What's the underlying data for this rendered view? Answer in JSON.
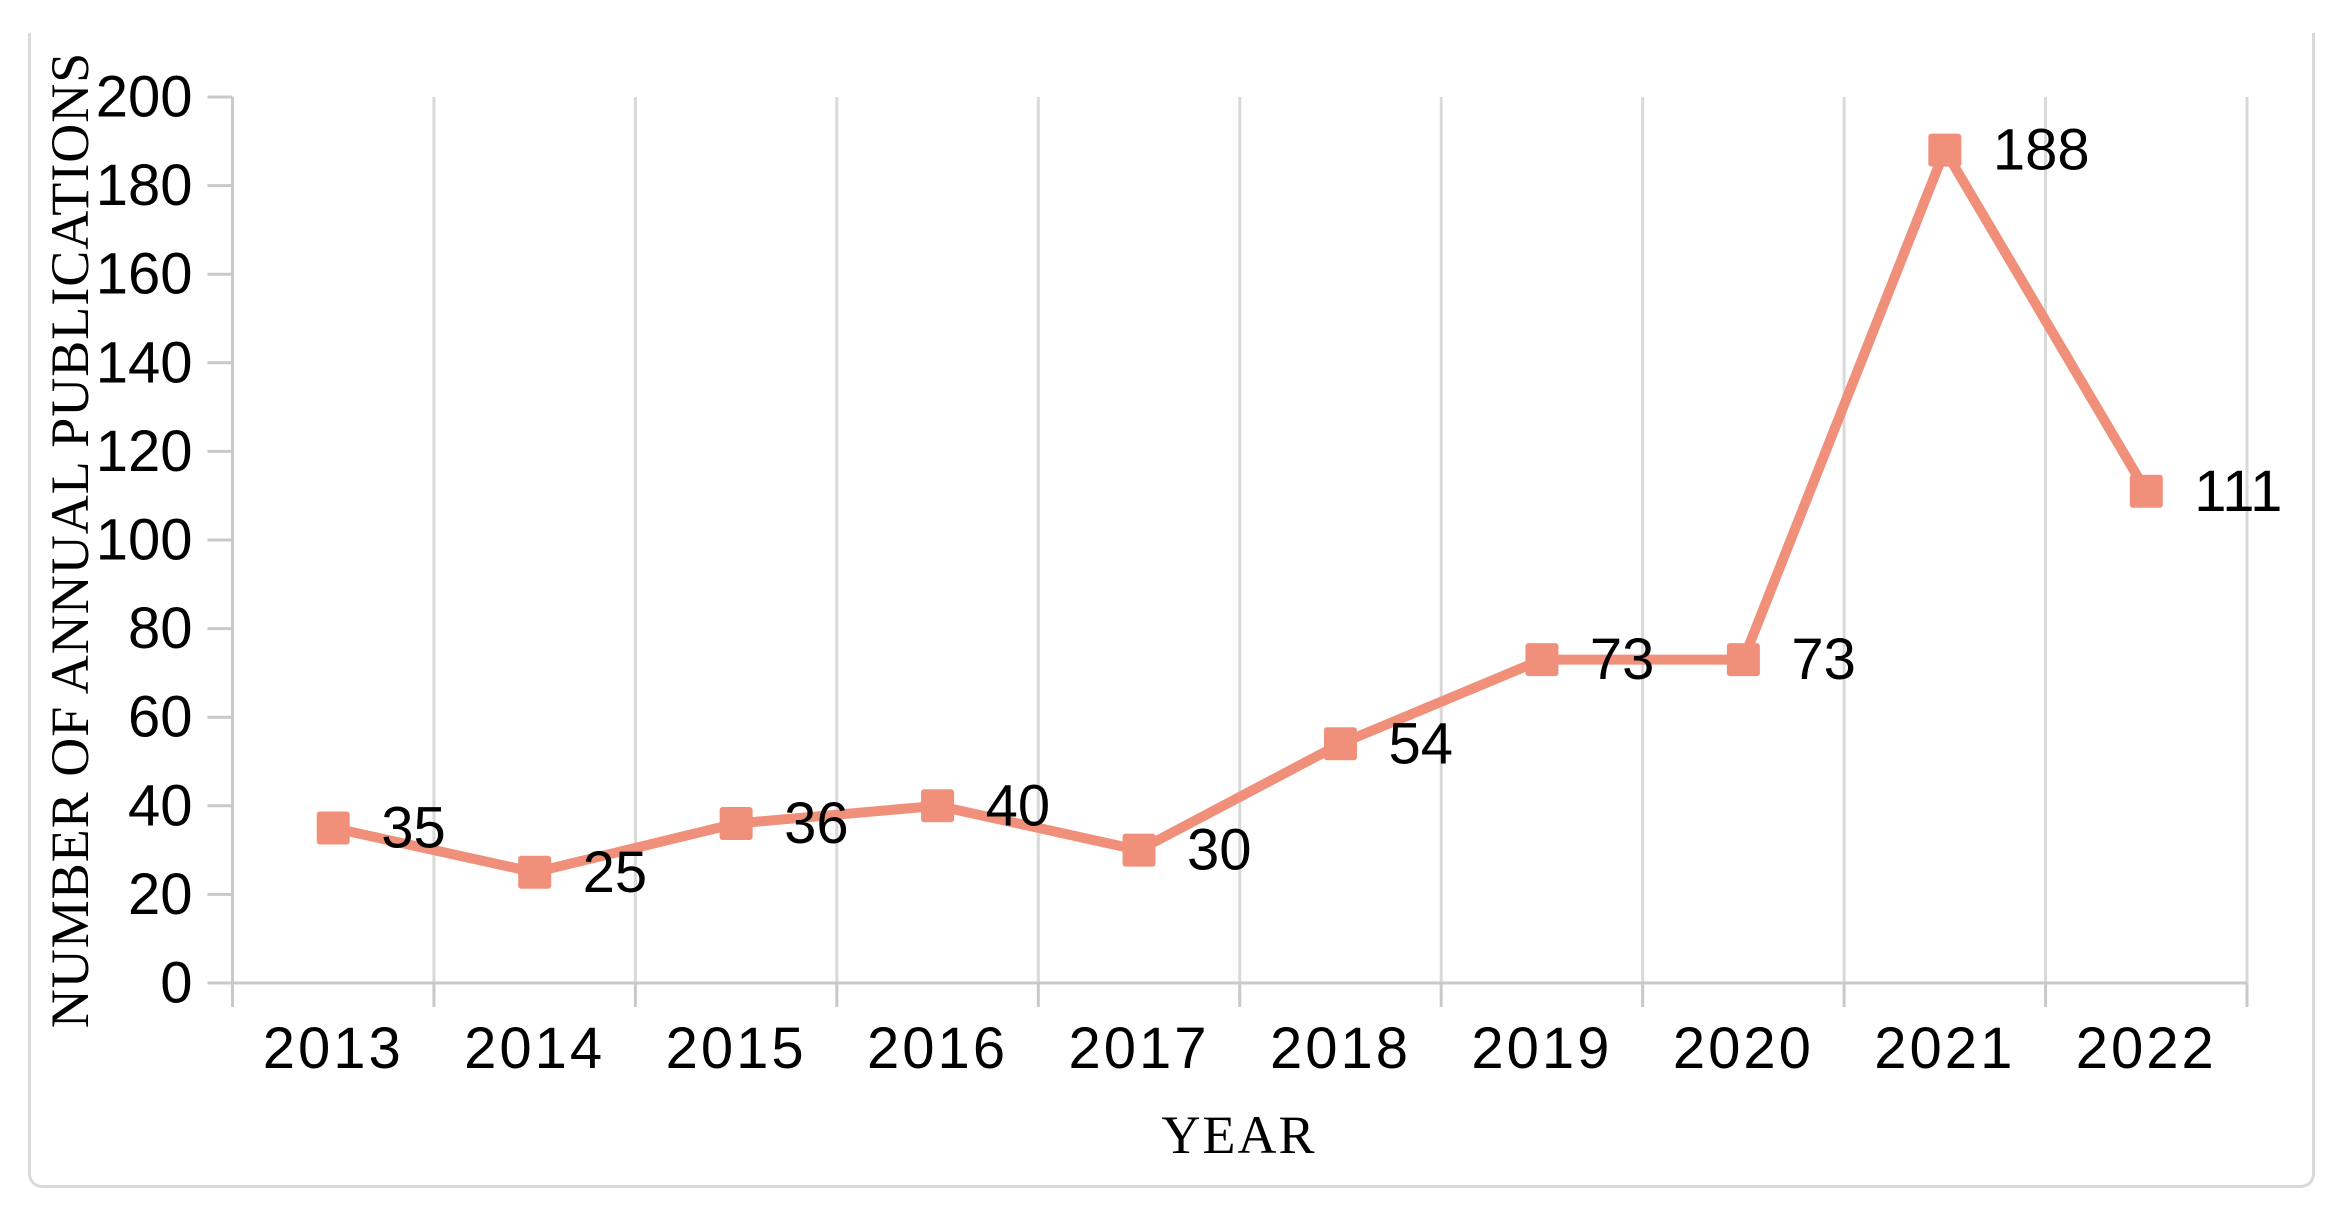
{
  "figure": {
    "background": "#FFFFFF",
    "border_color": "#D9D9D9"
  },
  "chart_data": {
    "type": "line",
    "xlabel": "YEAR",
    "ylabel": "NUMBER OF ANNUAL PUBLICATIONS",
    "categories": [
      "2013",
      "2014",
      "2015",
      "2016",
      "2017",
      "2018",
      "2019",
      "2020",
      "2021",
      "2022"
    ],
    "series": [
      {
        "values": [
          35,
          25,
          36,
          40,
          30,
          54,
          73,
          73,
          188,
          111
        ],
        "color": "#F0907A",
        "marker": "square",
        "data_labels": true
      }
    ],
    "ylim": [
      0,
      200
    ],
    "ytick_step": 20,
    "yticks": [
      0,
      20,
      40,
      60,
      80,
      100,
      120,
      140,
      160,
      180,
      200
    ],
    "grid": "vertical-only",
    "gridline_color": "#D9D9D9",
    "axis_color": "#C9C9C9",
    "text_color": "#000000",
    "legend": "none"
  }
}
